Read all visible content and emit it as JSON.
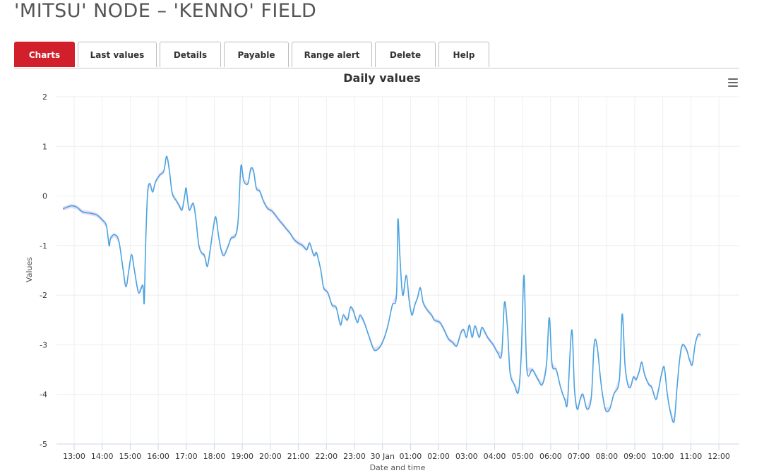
{
  "page": {
    "title": "'MITSU' NODE – 'KENNO' FIELD"
  },
  "tabs": [
    {
      "label": "Charts",
      "active": true
    },
    {
      "label": "Last values"
    },
    {
      "label": "Details"
    },
    {
      "label": "Payable"
    },
    {
      "label": "Range alert"
    },
    {
      "label": "Delete"
    },
    {
      "label": "Help"
    }
  ],
  "menu": {
    "icon": "hamburger-menu-icon"
  },
  "colors": {
    "line": "#4aa3e0",
    "range": "#d9c6ee",
    "accent": "#d11f2c"
  },
  "chart_data": {
    "type": "line",
    "title": "Daily values",
    "xlabel": "Date and time",
    "ylabel": "Values",
    "ylim": [
      -5,
      2
    ],
    "yticks": [
      "2",
      "1",
      "0",
      "-1",
      "-2",
      "-3",
      "-4",
      "-5"
    ],
    "xticks": [
      "13:00",
      "14:00",
      "15:00",
      "16:00",
      "17:00",
      "18:00",
      "19:00",
      "20:00",
      "21:00",
      "22:00",
      "23:00",
      "30 Jan",
      "01:00",
      "02:00",
      "03:00",
      "04:00",
      "05:00",
      "06:00",
      "07:00",
      "08:00",
      "09:00",
      "10:00",
      "11:00",
      "12:00"
    ],
    "x_unit": "hours from 13:00",
    "grid": true,
    "legend": "none",
    "series": [
      {
        "values": [
          [
            -0.4,
            -0.26
          ],
          [
            -0.1,
            -0.2
          ],
          [
            0.1,
            -0.23
          ],
          [
            0.3,
            -0.32
          ],
          [
            0.6,
            -0.35
          ],
          [
            0.8,
            -0.38
          ],
          [
            1.0,
            -0.48
          ],
          [
            1.15,
            -0.6
          ],
          [
            1.25,
            -1.0
          ],
          [
            1.3,
            -0.85
          ],
          [
            1.45,
            -0.78
          ],
          [
            1.6,
            -0.92
          ],
          [
            1.75,
            -1.5
          ],
          [
            1.85,
            -1.83
          ],
          [
            1.95,
            -1.5
          ],
          [
            2.05,
            -1.18
          ],
          [
            2.15,
            -1.5
          ],
          [
            2.3,
            -1.95
          ],
          [
            2.45,
            -1.8
          ],
          [
            2.5,
            -2.15
          ],
          [
            2.55,
            -1.0
          ],
          [
            2.62,
            0.05
          ],
          [
            2.7,
            0.25
          ],
          [
            2.8,
            0.08
          ],
          [
            2.9,
            0.28
          ],
          [
            3.05,
            0.42
          ],
          [
            3.2,
            0.5
          ],
          [
            3.3,
            0.8
          ],
          [
            3.4,
            0.5
          ],
          [
            3.5,
            0.05
          ],
          [
            3.65,
            -0.1
          ],
          [
            3.75,
            -0.2
          ],
          [
            3.85,
            -0.28
          ],
          [
            3.95,
            0.02
          ],
          [
            4.0,
            0.15
          ],
          [
            4.1,
            -0.28
          ],
          [
            4.25,
            -0.15
          ],
          [
            4.35,
            -0.5
          ],
          [
            4.45,
            -1.0
          ],
          [
            4.55,
            -1.15
          ],
          [
            4.65,
            -1.2
          ],
          [
            4.75,
            -1.42
          ],
          [
            4.85,
            -1.1
          ],
          [
            4.95,
            -0.7
          ],
          [
            5.05,
            -0.42
          ],
          [
            5.15,
            -0.8
          ],
          [
            5.25,
            -1.1
          ],
          [
            5.35,
            -1.2
          ],
          [
            5.5,
            -1.0
          ],
          [
            5.6,
            -0.85
          ],
          [
            5.75,
            -0.8
          ],
          [
            5.85,
            -0.5
          ],
          [
            5.95,
            0.6
          ],
          [
            6.05,
            0.3
          ],
          [
            6.2,
            0.25
          ],
          [
            6.3,
            0.55
          ],
          [
            6.4,
            0.5
          ],
          [
            6.5,
            0.15
          ],
          [
            6.62,
            0.1
          ],
          [
            6.75,
            -0.1
          ],
          [
            6.9,
            -0.25
          ],
          [
            7.05,
            -0.3
          ],
          [
            7.2,
            -0.4
          ],
          [
            7.3,
            -0.48
          ],
          [
            7.45,
            -0.58
          ],
          [
            7.55,
            -0.65
          ],
          [
            7.7,
            -0.75
          ],
          [
            7.85,
            -0.88
          ],
          [
            8.0,
            -0.95
          ],
          [
            8.15,
            -1.0
          ],
          [
            8.3,
            -1.08
          ],
          [
            8.4,
            -0.95
          ],
          [
            8.55,
            -1.2
          ],
          [
            8.65,
            -1.15
          ],
          [
            8.8,
            -1.5
          ],
          [
            8.9,
            -1.85
          ],
          [
            9.05,
            -1.95
          ],
          [
            9.2,
            -2.2
          ],
          [
            9.35,
            -2.25
          ],
          [
            9.5,
            -2.6
          ],
          [
            9.6,
            -2.4
          ],
          [
            9.75,
            -2.5
          ],
          [
            9.85,
            -2.25
          ],
          [
            9.95,
            -2.3
          ],
          [
            10.1,
            -2.55
          ],
          [
            10.2,
            -2.4
          ],
          [
            10.35,
            -2.55
          ],
          [
            10.5,
            -2.8
          ],
          [
            10.7,
            -3.1
          ],
          [
            10.9,
            -3.05
          ],
          [
            11.05,
            -2.88
          ],
          [
            11.2,
            -2.6
          ],
          [
            11.35,
            -2.2
          ],
          [
            11.5,
            -2.0
          ],
          [
            11.55,
            -0.48
          ],
          [
            11.62,
            -1.2
          ],
          [
            11.72,
            -2.0
          ],
          [
            11.85,
            -1.6
          ],
          [
            11.95,
            -2.1
          ],
          [
            12.05,
            -2.4
          ],
          [
            12.15,
            -2.2
          ],
          [
            12.25,
            -2.05
          ],
          [
            12.35,
            -1.85
          ],
          [
            12.45,
            -2.15
          ],
          [
            12.6,
            -2.3
          ],
          [
            12.75,
            -2.4
          ],
          [
            12.85,
            -2.5
          ],
          [
            13.05,
            -2.55
          ],
          [
            13.2,
            -2.7
          ],
          [
            13.35,
            -2.88
          ],
          [
            13.5,
            -2.95
          ],
          [
            13.65,
            -3.02
          ],
          [
            13.8,
            -2.75
          ],
          [
            13.9,
            -2.7
          ],
          [
            14.0,
            -2.85
          ],
          [
            14.1,
            -2.6
          ],
          [
            14.2,
            -2.85
          ],
          [
            14.3,
            -2.62
          ],
          [
            14.45,
            -2.85
          ],
          [
            14.55,
            -2.65
          ],
          [
            14.75,
            -2.85
          ],
          [
            14.95,
            -3.0
          ],
          [
            15.1,
            -3.15
          ],
          [
            15.25,
            -3.2
          ],
          [
            15.35,
            -2.15
          ],
          [
            15.45,
            -2.6
          ],
          [
            15.55,
            -3.55
          ],
          [
            15.7,
            -3.8
          ],
          [
            15.85,
            -3.95
          ],
          [
            15.95,
            -3.2
          ],
          [
            16.05,
            -1.6
          ],
          [
            16.15,
            -3.5
          ],
          [
            16.35,
            -3.5
          ],
          [
            16.55,
            -3.7
          ],
          [
            16.7,
            -3.8
          ],
          [
            16.85,
            -3.4
          ],
          [
            16.95,
            -2.45
          ],
          [
            17.05,
            -3.4
          ],
          [
            17.2,
            -3.5
          ],
          [
            17.35,
            -3.85
          ],
          [
            17.5,
            -4.1
          ],
          [
            17.6,
            -4.15
          ],
          [
            17.75,
            -2.7
          ],
          [
            17.85,
            -3.9
          ],
          [
            17.95,
            -4.3
          ],
          [
            18.05,
            -4.1
          ],
          [
            18.15,
            -4.0
          ],
          [
            18.3,
            -4.3
          ],
          [
            18.45,
            -4.05
          ],
          [
            18.55,
            -3.0
          ],
          [
            18.65,
            -3.0
          ],
          [
            18.8,
            -3.8
          ],
          [
            18.95,
            -4.3
          ],
          [
            19.1,
            -4.3
          ],
          [
            19.25,
            -4.0
          ],
          [
            19.45,
            -3.7
          ],
          [
            19.55,
            -2.38
          ],
          [
            19.65,
            -3.4
          ],
          [
            19.75,
            -3.8
          ],
          [
            19.85,
            -3.85
          ],
          [
            19.95,
            -3.65
          ],
          [
            20.05,
            -3.7
          ],
          [
            20.15,
            -3.55
          ],
          [
            20.25,
            -3.35
          ],
          [
            20.35,
            -3.6
          ],
          [
            20.5,
            -3.8
          ],
          [
            20.6,
            -3.85
          ],
          [
            20.75,
            -4.1
          ],
          [
            20.85,
            -3.9
          ],
          [
            20.95,
            -3.6
          ],
          [
            21.05,
            -3.45
          ],
          [
            21.15,
            -3.95
          ],
          [
            21.25,
            -4.3
          ],
          [
            21.4,
            -4.55
          ],
          [
            21.5,
            -3.9
          ],
          [
            21.6,
            -3.3
          ],
          [
            21.7,
            -3.0
          ],
          [
            21.85,
            -3.1
          ],
          [
            21.95,
            -3.3
          ],
          [
            22.05,
            -3.4
          ],
          [
            22.15,
            -3.0
          ],
          [
            22.25,
            -2.8
          ],
          [
            22.35,
            -2.8
          ]
        ]
      }
    ]
  }
}
